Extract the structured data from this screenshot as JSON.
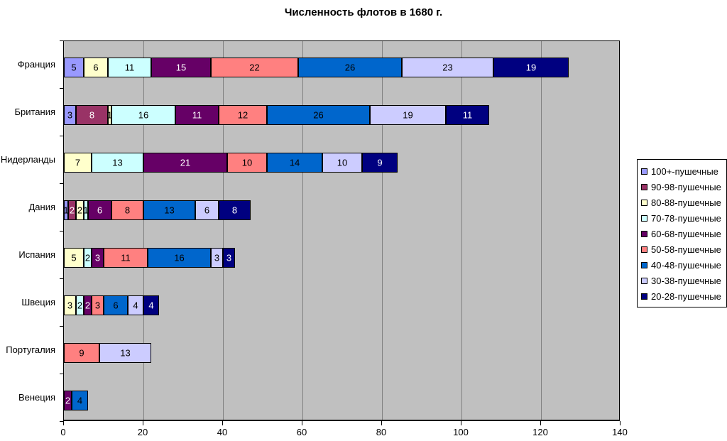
{
  "title": "Численность флотов в 1680 г.",
  "chart_data": {
    "type": "bar",
    "stacked": true,
    "orientation": "horizontal",
    "title": "Численность флотов в 1680 г.",
    "xlabel": "",
    "ylabel": "",
    "xlim": [
      0,
      140
    ],
    "x_ticks": [
      0,
      20,
      40,
      60,
      80,
      100,
      120,
      140
    ],
    "grid": true,
    "plot_bg_color": "#C0C0C0",
    "grid_color": "#808080",
    "legend_position": "right",
    "categories": [
      "Франция",
      "Британия",
      "Нидерланды",
      "Дания",
      "Испания",
      "Швеция",
      "Португалия",
      "Венеция"
    ],
    "series": [
      {
        "name": "100+-пушечные",
        "color": "#9999FF",
        "label_color": "#000000",
        "values": [
          5,
          3,
          0,
          1,
          0,
          0,
          0,
          0
        ]
      },
      {
        "name": "90-98-пушечные",
        "color": "#993366",
        "label_color": "#FFFFFF",
        "values": [
          0,
          8,
          0,
          2,
          0,
          0,
          0,
          0
        ]
      },
      {
        "name": "80-88-пушечные",
        "color": "#FFFFCC",
        "label_color": "#000000",
        "values": [
          6,
          1,
          7,
          2,
          5,
          3,
          0,
          0
        ]
      },
      {
        "name": "70-78-пушечные",
        "color": "#CCFFFF",
        "label_color": "#000000",
        "values": [
          11,
          16,
          13,
          1,
          2,
          2,
          0,
          0
        ]
      },
      {
        "name": "60-68-пушечные",
        "color": "#660066",
        "label_color": "#FFFFFF",
        "values": [
          15,
          11,
          21,
          6,
          3,
          2,
          0,
          2
        ]
      },
      {
        "name": "50-58-пушечные",
        "color": "#FF8080",
        "label_color": "#000000",
        "values": [
          22,
          12,
          10,
          8,
          11,
          3,
          9,
          0
        ]
      },
      {
        "name": "40-48-пушечные",
        "color": "#0066CC",
        "label_color": "#000000",
        "values": [
          26,
          26,
          14,
          13,
          16,
          6,
          0,
          4
        ]
      },
      {
        "name": "30-38-пушечные",
        "color": "#CCCCFF",
        "label_color": "#000000",
        "values": [
          23,
          19,
          10,
          6,
          3,
          4,
          13,
          0
        ]
      },
      {
        "name": "20-28-пушечные",
        "color": "#000080",
        "label_color": "#FFFFFF",
        "values": [
          19,
          11,
          9,
          8,
          3,
          4,
          0,
          0
        ]
      }
    ]
  }
}
